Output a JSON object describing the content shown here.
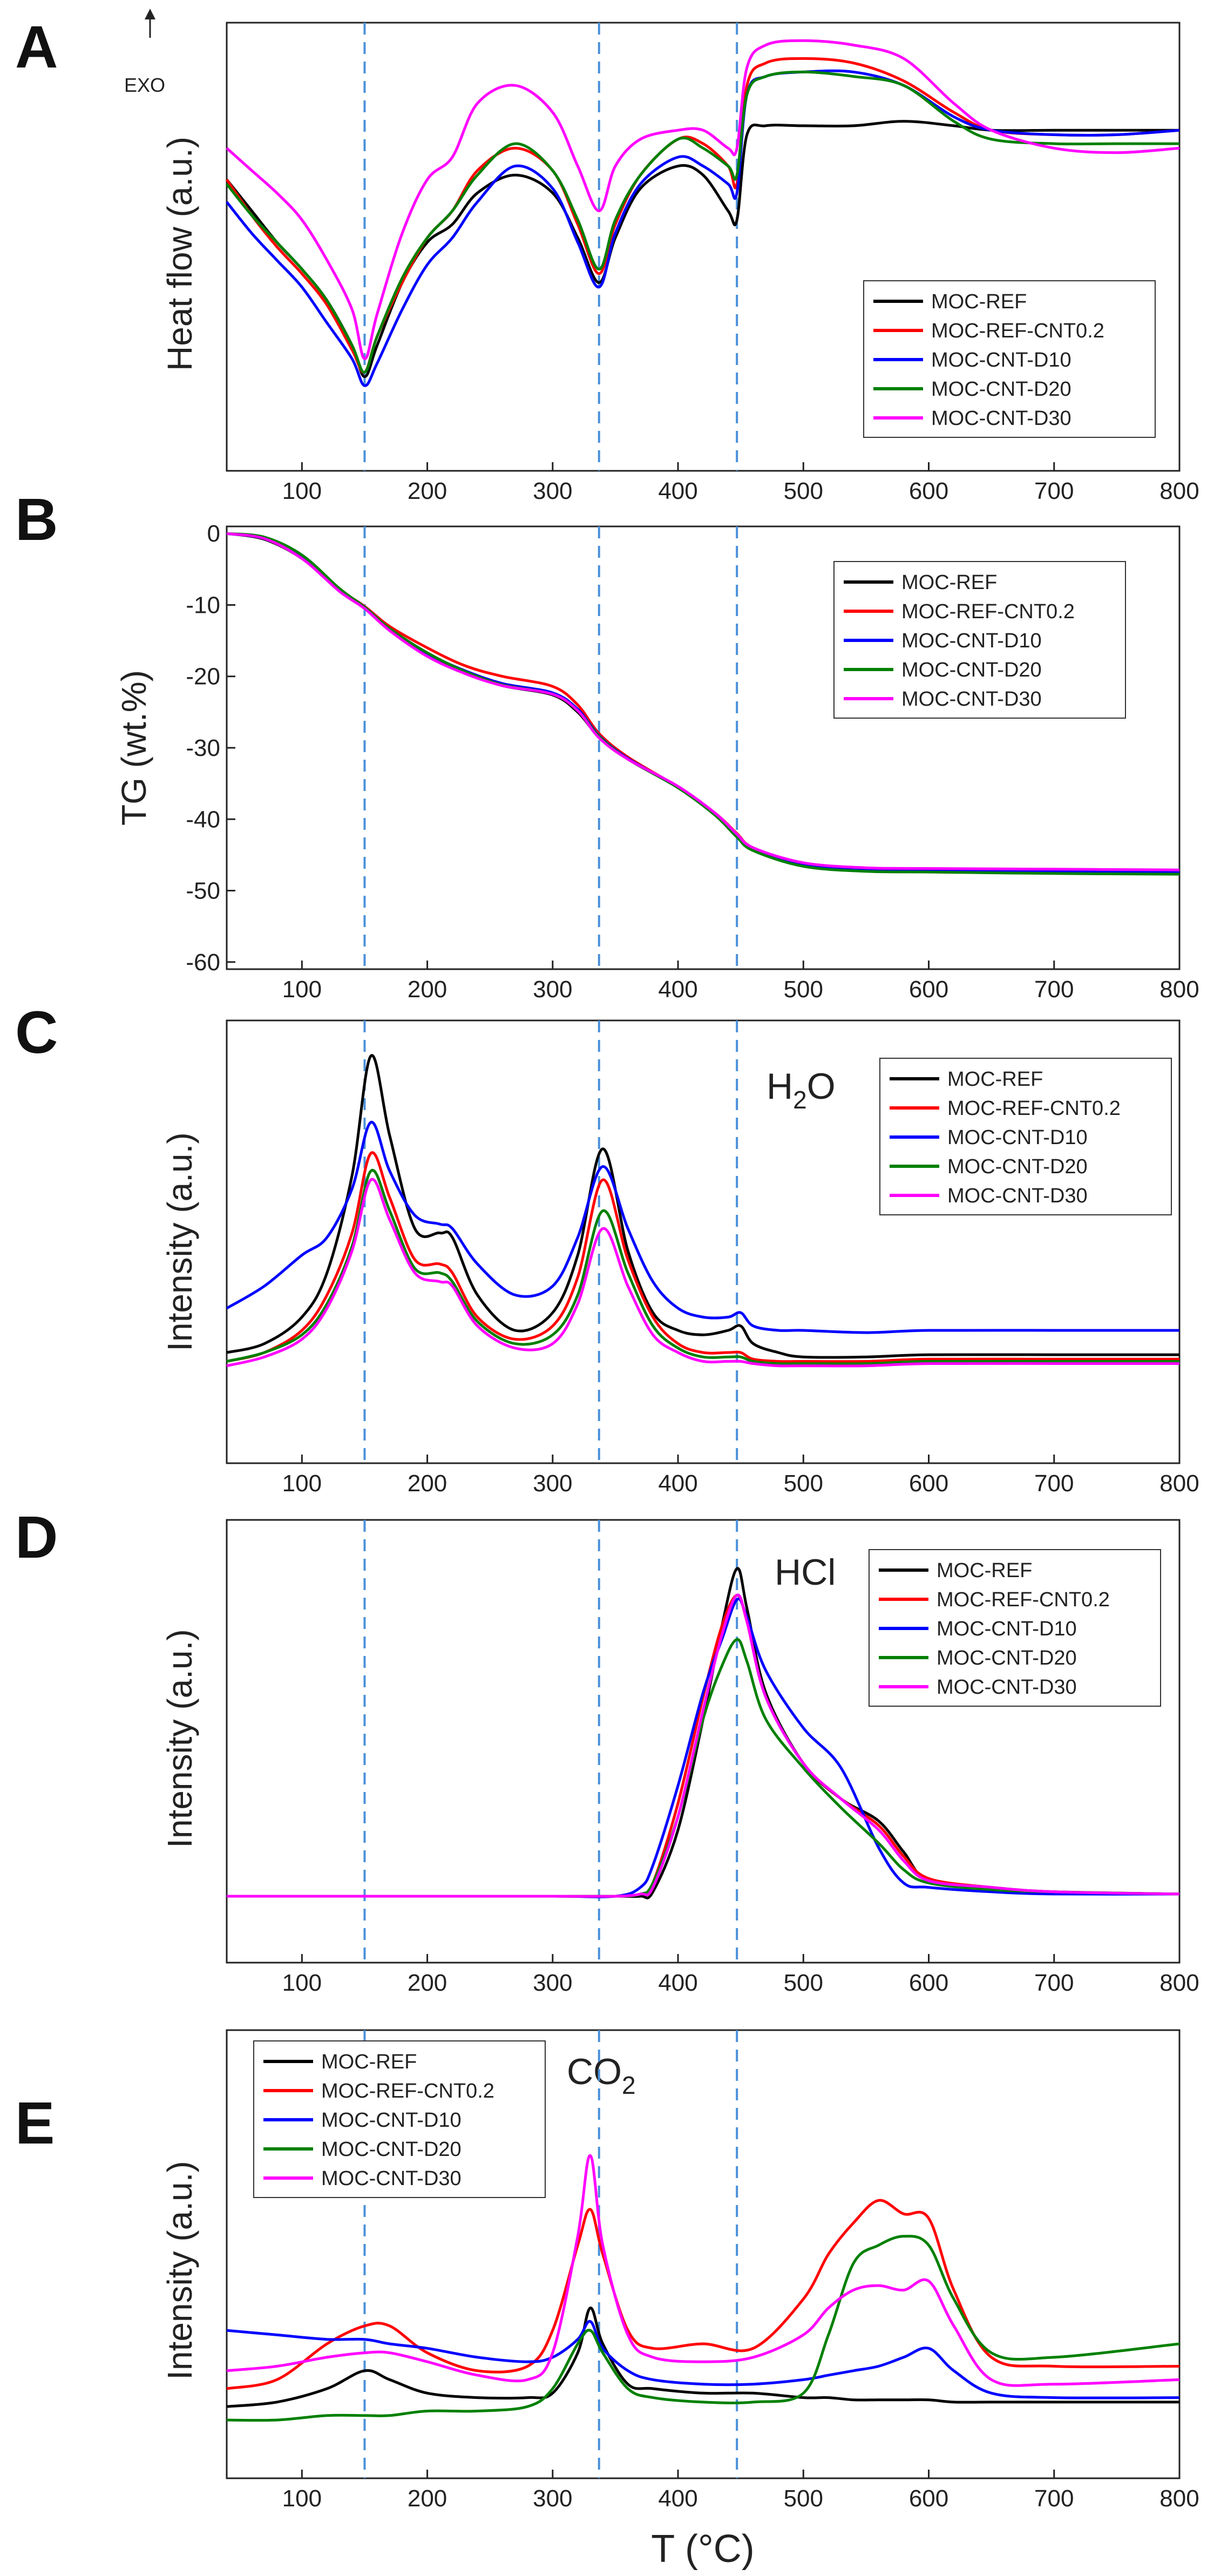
{
  "figure": {
    "x_label": "T (°C)",
    "x_range": [
      40,
      800
    ],
    "x_ticks": [
      100,
      200,
      300,
      400,
      500,
      600,
      700,
      800
    ],
    "reference_lines": [
      150,
      337,
      447
    ],
    "reference_line_color": "#4a90d9"
  },
  "series_styles": [
    {
      "name": "MOC-REF",
      "color": "#000000"
    },
    {
      "name": "MOC-REF-CNT0.2",
      "color": "#ff0000"
    },
    {
      "name": "MOC-CNT-D10",
      "color": "#0000ff"
    },
    {
      "name": "MOC-CNT-D20",
      "color": "#008000"
    },
    {
      "name": "MOC-CNT-D30",
      "color": "#ff00ff"
    }
  ],
  "chart_data": [
    {
      "panel": "A",
      "type": "line",
      "title": "",
      "ylabel": "Heat flow (a.u.)",
      "xlabel": "",
      "annotation": "EXO",
      "ylim": [
        0,
        100
      ],
      "yticks": [],
      "legend_position": "lower-right",
      "x": [
        40,
        60,
        80,
        100,
        120,
        140,
        150,
        160,
        180,
        200,
        220,
        240,
        270,
        300,
        320,
        337,
        350,
        370,
        400,
        420,
        440,
        447,
        455,
        470,
        500,
        540,
        580,
        620,
        650,
        700,
        750,
        800
      ],
      "series": [
        {
          "name": "MOC-REF",
          "values": [
            65,
            58,
            51,
            45,
            38,
            28,
            21,
            28,
            42,
            51,
            55,
            62,
            66,
            62,
            52,
            42,
            52,
            63,
            68,
            66,
            58,
            56,
            75,
            77,
            77,
            77,
            78,
            77,
            76,
            76,
            76,
            76
          ]
        },
        {
          "name": "MOC-REF-CNT0.2",
          "values": [
            65,
            57,
            50,
            44,
            37,
            27,
            22,
            30,
            42,
            52,
            58,
            67,
            72,
            67,
            55,
            44,
            55,
            66,
            74,
            73,
            68,
            64,
            86,
            91,
            92,
            91,
            87,
            80,
            76,
            75,
            75,
            76
          ]
        },
        {
          "name": "MOC-CNT-D10",
          "values": [
            60,
            53,
            47,
            41,
            33,
            25,
            19,
            24,
            36,
            46,
            52,
            60,
            68,
            63,
            51,
            41,
            53,
            64,
            70,
            68,
            64,
            62,
            84,
            88,
            89,
            89,
            86,
            79,
            76,
            75,
            75,
            76
          ]
        },
        {
          "name": "MOC-CNT-D20",
          "values": [
            64,
            57,
            51,
            45,
            38,
            28,
            22,
            30,
            43,
            52,
            58,
            66,
            73,
            67,
            56,
            45,
            56,
            66,
            74,
            72,
            68,
            66,
            84,
            88,
            89,
            88,
            86,
            78,
            74,
            73,
            73,
            73
          ]
        },
        {
          "name": "MOC-CNT-D30",
          "values": [
            72,
            67,
            62,
            56,
            47,
            36,
            25,
            35,
            53,
            65,
            70,
            82,
            86,
            80,
            68,
            58,
            68,
            74,
            76,
            76,
            72,
            72,
            90,
            95,
            96,
            95,
            92,
            82,
            76,
            72,
            71,
            72
          ]
        }
      ]
    },
    {
      "panel": "B",
      "type": "line",
      "title": "",
      "ylabel": "TG (wt.%)",
      "xlabel": "",
      "ylim": [
        -61,
        1
      ],
      "yticks": [
        0,
        -10,
        -20,
        -30,
        -40,
        -50,
        -60
      ],
      "legend_position": "top-right",
      "x": [
        40,
        70,
        100,
        130,
        150,
        170,
        200,
        230,
        260,
        300,
        320,
        337,
        360,
        400,
        430,
        447,
        460,
        500,
        550,
        600,
        700,
        800
      ],
      "series": [
        {
          "name": "MOC-REF",
          "values": [
            0,
            -0.8,
            -3.5,
            -8,
            -10.5,
            -13.5,
            -17,
            -19.5,
            -21.3,
            -22.6,
            -25,
            -28.5,
            -31.5,
            -35.5,
            -39.5,
            -42.5,
            -44.3,
            -46.5,
            -47.2,
            -47.3,
            -47.5,
            -47.6
          ]
        },
        {
          "name": "MOC-REF-CNT0.2",
          "values": [
            0,
            -0.6,
            -3.2,
            -7.8,
            -10.2,
            -13,
            -16,
            -18.5,
            -20,
            -21.4,
            -24,
            -28,
            -31.3,
            -35.5,
            -39.2,
            -42,
            -44,
            -46.2,
            -47,
            -47.1,
            -47.2,
            -47.3
          ]
        },
        {
          "name": "MOC-CNT-D10",
          "values": [
            0,
            -0.7,
            -3.4,
            -8,
            -10.4,
            -13.4,
            -16.8,
            -19.2,
            -21,
            -22.3,
            -24.6,
            -28.3,
            -31.5,
            -35.5,
            -39.4,
            -42.3,
            -44.2,
            -46.4,
            -47.1,
            -47.2,
            -47.3,
            -47.4
          ]
        },
        {
          "name": "MOC-CNT-D20",
          "values": [
            0,
            -0.5,
            -3,
            -7.7,
            -10.3,
            -13.3,
            -16.7,
            -19.3,
            -21.2,
            -22.5,
            -24.8,
            -28.4,
            -31.6,
            -35.6,
            -39.5,
            -42.5,
            -44.4,
            -46.6,
            -47.3,
            -47.4,
            -47.6,
            -47.7
          ]
        },
        {
          "name": "MOC-CNT-D30",
          "values": [
            0,
            -0.7,
            -3.5,
            -8.1,
            -10.5,
            -13.6,
            -17.2,
            -19.6,
            -21.3,
            -22.5,
            -24.8,
            -28.6,
            -31.6,
            -35.4,
            -39.2,
            -42.1,
            -44,
            -46.1,
            -46.8,
            -46.9,
            -47,
            -47.1
          ]
        }
      ]
    },
    {
      "panel": "C",
      "type": "line",
      "title": "",
      "ylabel": "Intensity (a.u.)",
      "xlabel": "",
      "annotation_main": "H",
      "annotation_sub": "2",
      "annotation_tail": "O",
      "ylim": [
        0,
        100
      ],
      "yticks": [],
      "legend_position": "top-right",
      "x": [
        40,
        70,
        100,
        120,
        140,
        155,
        170,
        190,
        210,
        220,
        240,
        270,
        300,
        320,
        340,
        360,
        380,
        400,
        420,
        440,
        450,
        460,
        480,
        500,
        550,
        600,
        700,
        800
      ],
      "series": [
        {
          "name": "MOC-REF",
          "values": [
            25,
            27,
            33,
            43,
            65,
            92,
            74,
            53,
            52,
            51,
            38,
            30,
            34,
            47,
            71,
            48,
            34,
            30,
            29,
            30,
            31,
            27,
            25,
            24,
            24,
            24.5,
            24.5,
            24.5
          ]
        },
        {
          "name": "MOC-REF-CNT0.2",
          "values": [
            23,
            25,
            30,
            38,
            52,
            70,
            60,
            46,
            45,
            43,
            33,
            28,
            31,
            42,
            64,
            46,
            33,
            27,
            25,
            25,
            25,
            23.5,
            23,
            23,
            23,
            23.5,
            23.5,
            23.5
          ]
        },
        {
          "name": "MOC-CNT-D10",
          "values": [
            35,
            40,
            47,
            51,
            62,
            77,
            66,
            56,
            54,
            53,
            45,
            38,
            40,
            51,
            67,
            53,
            41,
            35,
            33,
            33,
            34,
            31,
            30,
            30,
            29.5,
            30,
            30,
            30
          ]
        },
        {
          "name": "MOC-CNT-D20",
          "values": [
            23,
            25,
            29,
            36,
            49,
            66,
            57,
            44,
            43,
            41,
            32,
            27,
            29,
            38,
            57,
            43,
            31,
            26,
            24,
            24,
            24,
            23,
            22.5,
            22.5,
            22.5,
            23,
            23,
            23
          ]
        },
        {
          "name": "MOC-CNT-D30",
          "values": [
            22,
            24,
            28,
            35,
            48,
            64,
            55,
            43,
            41,
            40,
            31,
            26,
            27,
            36,
            53,
            40,
            29,
            25,
            23,
            23,
            23,
            22.5,
            22,
            22,
            22,
            22.5,
            22.5,
            22.5
          ]
        }
      ]
    },
    {
      "panel": "D",
      "type": "line",
      "title": "",
      "ylabel": "Intensity (a.u.)",
      "xlabel": "",
      "annotation": "HCl",
      "ylim": [
        0,
        100
      ],
      "yticks": [],
      "legend_position": "top-right",
      "x": [
        40,
        100,
        200,
        300,
        350,
        370,
        380,
        400,
        420,
        435,
        447,
        455,
        470,
        500,
        530,
        560,
        580,
        600,
        650,
        700,
        800
      ],
      "series": [
        {
          "name": "MOC-REF",
          "values": [
            15,
            15,
            15,
            15,
            15,
            15,
            16,
            30,
            55,
            76,
            89,
            80,
            61,
            45,
            37,
            32,
            25,
            18.5,
            17,
            16,
            15.5
          ]
        },
        {
          "name": "MOC-REF-CNT0.2",
          "values": [
            15,
            15,
            15,
            15,
            15,
            15.5,
            18,
            36,
            60,
            76,
            83,
            77,
            60,
            45,
            37,
            31,
            24,
            19,
            17,
            16,
            15.5
          ]
        },
        {
          "name": "MOC-CNT-D10",
          "values": [
            15,
            15,
            15,
            15,
            15,
            17,
            22,
            40,
            61,
            73,
            82,
            78,
            66,
            53,
            44,
            26,
            18,
            17,
            16,
            15.5,
            15.5
          ]
        },
        {
          "name": "MOC-CNT-D20",
          "values": [
            15,
            15,
            15,
            15,
            15,
            15.5,
            18,
            33,
            55,
            67,
            73,
            68,
            55,
            44,
            35,
            27,
            21,
            18,
            16.5,
            16,
            15.5
          ]
        },
        {
          "name": "MOC-CNT-D30",
          "values": [
            15,
            15,
            15,
            15,
            15,
            15.5,
            17,
            33,
            57,
            74,
            83,
            77,
            60,
            45,
            37,
            30,
            23,
            18.5,
            17,
            16,
            15.5
          ]
        }
      ]
    },
    {
      "panel": "E",
      "type": "line",
      "title": "",
      "ylabel": "Intensity (a.u.)",
      "xlabel": "T (°C)",
      "annotation_main": "CO",
      "annotation_sub": "2",
      "annotation_tail": "",
      "ylim": [
        0,
        100
      ],
      "yticks": [],
      "legend_position": "top-left",
      "x": [
        40,
        80,
        120,
        150,
        170,
        200,
        240,
        280,
        300,
        320,
        330,
        340,
        360,
        380,
        420,
        460,
        500,
        520,
        540,
        560,
        580,
        600,
        620,
        650,
        700,
        800
      ],
      "series": [
        {
          "name": "MOC-REF",
          "values": [
            16,
            17,
            20,
            24,
            22,
            19,
            18,
            18,
            19,
            28,
            38,
            30,
            21,
            20,
            19,
            19,
            18,
            18,
            17.5,
            17.5,
            17.5,
            17.5,
            17,
            17,
            17,
            17
          ]
        },
        {
          "name": "MOC-REF-CNT0.2",
          "values": [
            20,
            22,
            30,
            34,
            34,
            28,
            24,
            25,
            33,
            52,
            60,
            50,
            33,
            29,
            30,
            29,
            40,
            50,
            57,
            62,
            59,
            58,
            42,
            27,
            25,
            25
          ]
        },
        {
          "name": "MOC-CNT-D10",
          "values": [
            33,
            32,
            31,
            31,
            30,
            29,
            27,
            26,
            27,
            31,
            35,
            29,
            24,
            22,
            21,
            21,
            22,
            23,
            24,
            25,
            27,
            29,
            24,
            19,
            18,
            18
          ]
        },
        {
          "name": "MOC-CNT-D20",
          "values": [
            13,
            13,
            14,
            14,
            14,
            15,
            15,
            16,
            20,
            30,
            33,
            28,
            20,
            18,
            17,
            17,
            19,
            32,
            48,
            52,
            54,
            52,
            40,
            28,
            27,
            30
          ]
        },
        {
          "name": "MOC-CNT-D30",
          "values": [
            24,
            25,
            27,
            28,
            28,
            26,
            23,
            22,
            28,
            54,
            72,
            52,
            32,
            27,
            26,
            27,
            32,
            38,
            42,
            43,
            42,
            44,
            34,
            22,
            21,
            22
          ]
        }
      ]
    }
  ]
}
